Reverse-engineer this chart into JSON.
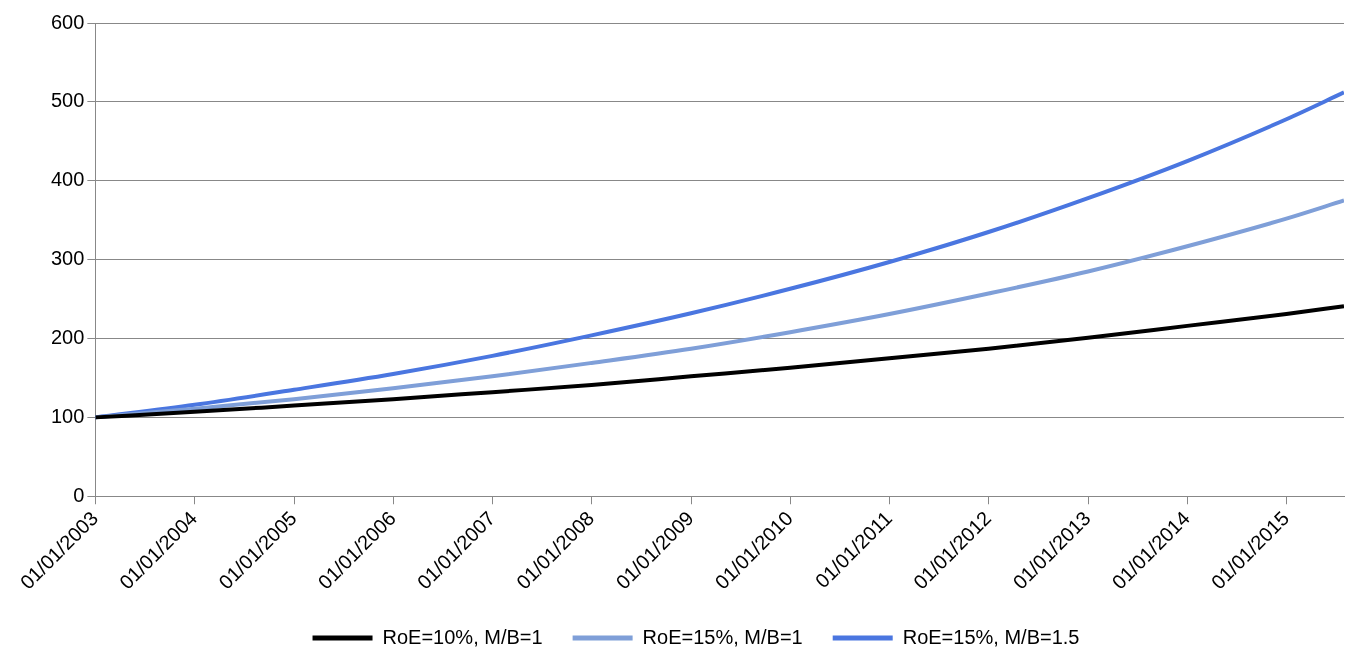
{
  "chart_data": {
    "type": "line",
    "x": [
      "2003-01-01",
      "2004-01-01",
      "2005-01-01",
      "2006-01-01",
      "2007-01-01",
      "2008-01-01",
      "2009-01-01",
      "2010-01-01",
      "2011-01-01",
      "2012-01-01",
      "2013-01-01",
      "2014-01-01",
      "2015-01-01",
      "2015-08-01"
    ],
    "series": [
      {
        "name": "RoE=10%, M/B=1",
        "color": "#000000",
        "values": [
          100,
          107,
          115,
          123,
          132,
          141,
          152,
          163,
          175,
          187,
          201,
          216,
          231,
          241
        ]
      },
      {
        "name": "RoE=15%, M/B=1",
        "color": "#7f9fd8",
        "values": [
          100,
          111,
          123,
          137,
          152,
          169,
          187,
          208,
          231,
          257,
          285,
          317,
          352,
          375
        ]
      },
      {
        "name": "RoE=15%, M/B=1.5",
        "color": "#4a76e0",
        "values": [
          100,
          116,
          135,
          155,
          178,
          204,
          232,
          263,
          297,
          335,
          378,
          425,
          478,
          512
        ]
      }
    ],
    "xlim": [
      "2003-01-01",
      "2015-08-01"
    ],
    "xticks": [
      {
        "value": "2003-01-01",
        "label": "01/01/2003"
      },
      {
        "value": "2004-01-01",
        "label": "01/01/2004"
      },
      {
        "value": "2005-01-01",
        "label": "01/01/2005"
      },
      {
        "value": "2006-01-01",
        "label": "01/01/2006"
      },
      {
        "value": "2007-01-01",
        "label": "01/01/2007"
      },
      {
        "value": "2008-01-01",
        "label": "01/01/2008"
      },
      {
        "value": "2009-01-01",
        "label": "01/01/2009"
      },
      {
        "value": "2010-01-01",
        "label": "01/01/2010"
      },
      {
        "value": "2011-01-01",
        "label": "01/01/2011"
      },
      {
        "value": "2012-01-01",
        "label": "01/01/2012"
      },
      {
        "value": "2013-01-01",
        "label": "01/01/2013"
      },
      {
        "value": "2014-01-01",
        "label": "01/01/2014"
      },
      {
        "value": "2015-01-01",
        "label": "01/01/2015"
      }
    ],
    "ylim": [
      0,
      600
    ],
    "yticks": [
      0,
      100,
      200,
      300,
      400,
      500,
      600
    ],
    "grid": "y",
    "legend": "bottom",
    "marker": "none",
    "line_style": "solid"
  }
}
